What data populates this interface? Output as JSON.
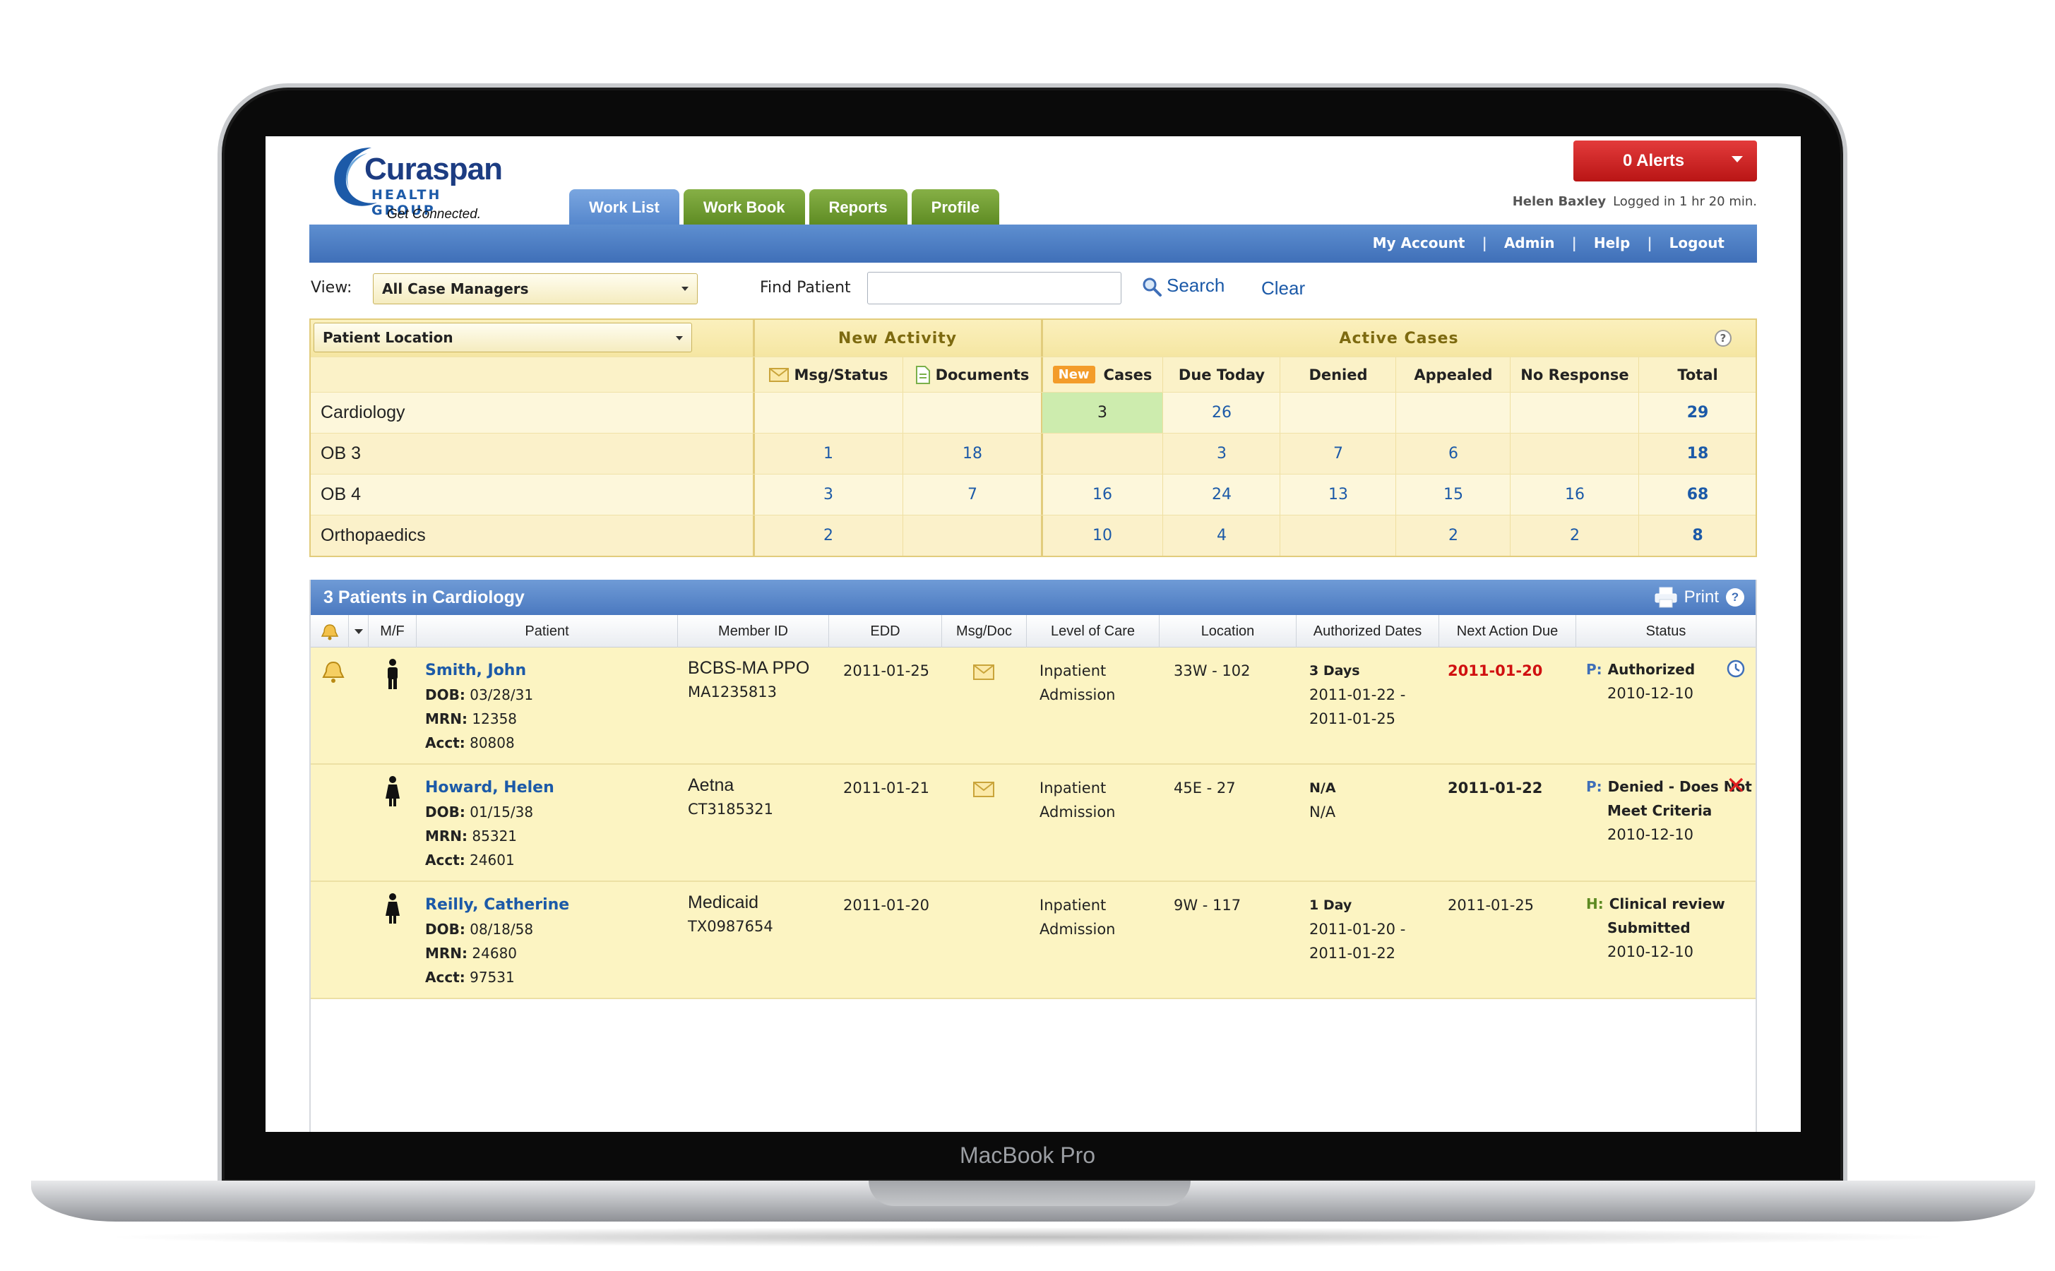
{
  "device": {
    "label": "MacBook Pro"
  },
  "logo": {
    "name": "Curaspan",
    "sub": "HEALTH GROUP",
    "tagline": "Get Connected."
  },
  "tabs": [
    {
      "label": "Work List",
      "active": true
    },
    {
      "label": "Work Book",
      "active": false
    },
    {
      "label": "Reports",
      "active": false
    },
    {
      "label": "Profile",
      "active": false
    }
  ],
  "alerts": {
    "label": "0 Alerts"
  },
  "user": {
    "name": "Helen Baxley",
    "status": "Logged in 1 hr 20 min."
  },
  "top_links": [
    "My Account",
    "Admin",
    "Help",
    "Logout"
  ],
  "filters": {
    "view_label": "View:",
    "view_value": "All Case Managers",
    "find_label": "Find Patient",
    "find_value": "",
    "search_label": "Search",
    "clear_label": "Clear"
  },
  "summary": {
    "group_select": "Patient Location",
    "new_activity": "New Activity",
    "active_cases": "Active Cases",
    "col_msg": "Msg/Status",
    "col_docs": "Documents",
    "new_badge": "New",
    "col_cases": "Cases",
    "col_due": "Due Today",
    "col_denied": "Denied",
    "col_appealed": "Appealed",
    "col_noresp": "No Response",
    "col_total": "Total",
    "rows": [
      {
        "label": "Cardiology",
        "msg": "",
        "docs": "",
        "cases": "3",
        "due": "26",
        "denied": "",
        "appealed": "",
        "noresp": "",
        "total": "29"
      },
      {
        "label": "OB 3",
        "msg": "1",
        "docs": "18",
        "cases": "",
        "due": "3",
        "denied": "7",
        "appealed": "6",
        "noresp": "",
        "total": "18"
      },
      {
        "label": "OB 4",
        "msg": "3",
        "docs": "7",
        "cases": "16",
        "due": "24",
        "denied": "13",
        "appealed": "15",
        "noresp": "16",
        "total": "68"
      },
      {
        "label": "Orthopaedics",
        "msg": "2",
        "docs": "",
        "cases": "10",
        "due": "4",
        "denied": "",
        "appealed": "2",
        "noresp": "2",
        "total": "8"
      }
    ]
  },
  "patients_panel": {
    "title": "3 Patients in Cardiology",
    "print": "Print",
    "columns": {
      "mf": "M/F",
      "patient": "Patient",
      "member": "Member ID",
      "edd": "EDD",
      "msgdoc": "Msg/Doc",
      "loc_care": "Level of Care",
      "location": "Location",
      "auth": "Authorized Dates",
      "next": "Next Action Due",
      "status": "Status"
    },
    "labels": {
      "dob": "DOB:",
      "mrn": "MRN:",
      "acct": "Acct:"
    },
    "rows": [
      {
        "name": "Smith, John",
        "dob": "03/28/31",
        "mrn": "12358",
        "acct": "80808",
        "payer": "BCBS-MA PPO",
        "member_id": "MA1235813",
        "edd": "2011-01-25",
        "care1": "Inpatient",
        "care2": "Admission",
        "location": "33W - 102",
        "auth1": "3 Days",
        "auth2": "2011-01-22 -",
        "auth3": "2011-01-25",
        "next": "2011-01-20",
        "st_prefix": "P:",
        "st1": "Authorized",
        "st2": "",
        "st_date": "2010-12-10"
      },
      {
        "name": "Howard, Helen",
        "dob": "01/15/38",
        "mrn": "85321",
        "acct": "24601",
        "payer": "Aetna",
        "member_id": "CT3185321",
        "edd": "2011-01-21",
        "care1": "Inpatient",
        "care2": "Admission",
        "location": "45E - 27",
        "auth1": "N/A",
        "auth2": "N/A",
        "auth3": "",
        "next": "2011-01-22",
        "st_prefix": "P:",
        "st1": "Denied - Does Not",
        "st2": "Meet Criteria",
        "st_date": "2010-12-10"
      },
      {
        "name": "Reilly, Catherine",
        "dob": "08/18/58",
        "mrn": "24680",
        "acct": "97531",
        "payer": "Medicaid",
        "member_id": "TX0987654",
        "edd": "2011-01-20",
        "care1": "Inpatient",
        "care2": "Admission",
        "location": "9W - 117",
        "auth1": "1 Day",
        "auth2": "2011-01-20 -",
        "auth3": "2011-01-22",
        "next": "2011-01-25",
        "st_prefix": "H:",
        "st1": "Clinical review",
        "st2": "Submitted",
        "st_date": "2010-12-10"
      }
    ]
  },
  "colors": {
    "accent_blue": "#4b79c0",
    "tab_green": "#5d8a22",
    "alert_red": "#c91c1c",
    "row_yellow": "#fcf4c2"
  }
}
